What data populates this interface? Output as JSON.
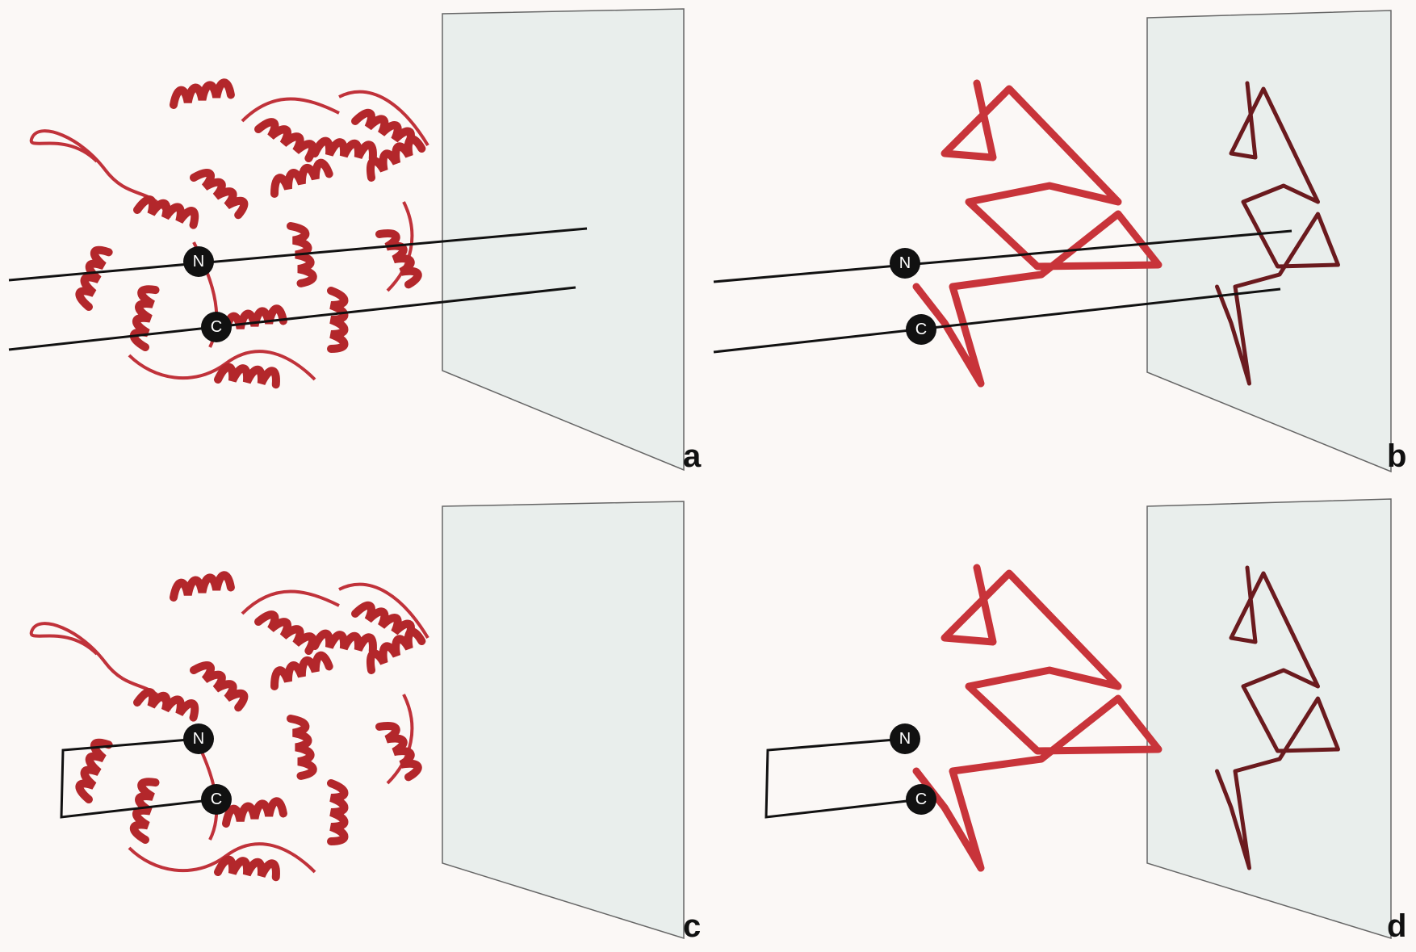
{
  "panels": [
    {
      "label": "a",
      "n_label": "N",
      "c_label": "C"
    },
    {
      "label": "b",
      "n_label": "N",
      "c_label": "C"
    },
    {
      "label": "c",
      "n_label": "N",
      "c_label": "C"
    },
    {
      "label": "d",
      "n_label": "N",
      "c_label": "C"
    }
  ]
}
